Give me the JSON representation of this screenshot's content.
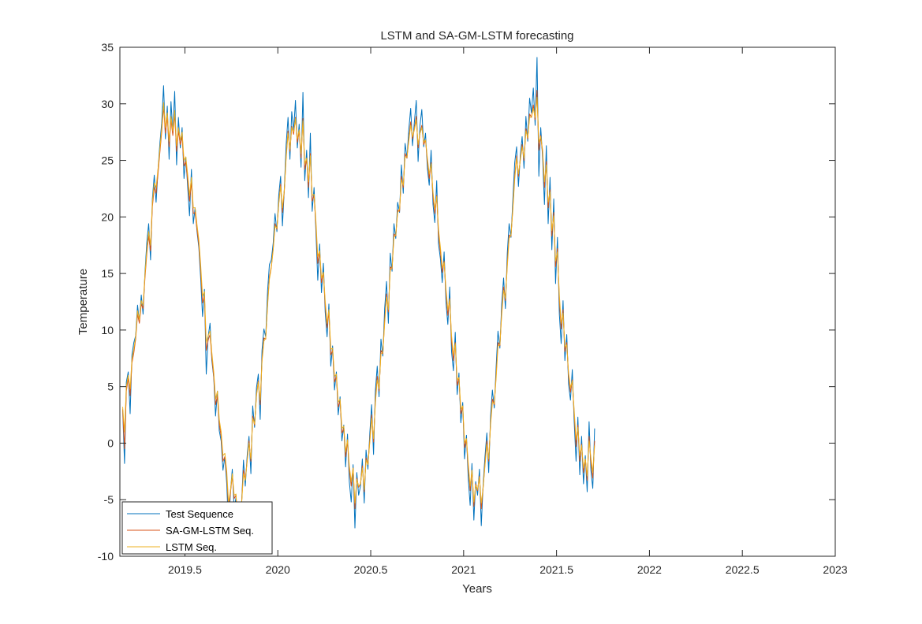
{
  "chart_data": {
    "type": "line",
    "title": "LSTM and SA-GM-LSTM forecasting",
    "xlabel": "Years",
    "ylabel": "Temperature",
    "xlim": [
      2019.15,
      2023.0
    ],
    "ylim": [
      -10,
      35
    ],
    "xticks": [
      2019.5,
      2020,
      2020.5,
      2021,
      2021.5,
      2022,
      2022.5,
      2023
    ],
    "xtick_labels": [
      "2019.5",
      "2020",
      "2020.5",
      "2021",
      "2021.5",
      "2022",
      "2022.5",
      "2023"
    ],
    "yticks": [
      -10,
      -5,
      0,
      5,
      10,
      15,
      20,
      25,
      30,
      35
    ],
    "ytick_labels": [
      "-10",
      "-5",
      "0",
      "5",
      "10",
      "15",
      "20",
      "25",
      "30",
      "35"
    ],
    "grid": false,
    "legend_position": "bottom-left",
    "x_start": 2019.165,
    "x_step": 0.01,
    "series": [
      {
        "name": "Test Sequence",
        "color": "#0072BD",
        "values": [
          3.0,
          -1.8,
          5.4,
          6.3,
          2.6,
          7.8,
          8.9,
          9.5,
          12.2,
          10.7,
          13.1,
          11.4,
          15.1,
          17.8,
          19.4,
          16.2,
          21.6,
          23.7,
          21.3,
          24.1,
          26.5,
          28.3,
          31.6,
          26.9,
          29.8,
          25.1,
          30.2,
          27.4,
          31.1,
          24.6,
          28.8,
          26.1,
          27.9,
          23.4,
          25.3,
          22.6,
          20.1,
          24.2,
          19.4,
          20.8,
          18.7,
          17.3,
          14.5,
          11.2,
          13.6,
          6.1,
          9.4,
          10.6,
          7.3,
          5.8,
          2.4,
          4.6,
          1.1,
          0.2,
          -2.4,
          -1.2,
          -3.6,
          -7.6,
          -4.3,
          -2.3,
          -5.9,
          -4.8,
          -9.6,
          -8.7,
          -5.4,
          -1.5,
          -3.8,
          -1.1,
          0.6,
          -2.7,
          3.3,
          1.4,
          4.9,
          6.1,
          2.1,
          8.2,
          10.1,
          9.4,
          13.5,
          15.8,
          16.2,
          17.7,
          20.3,
          18.7,
          21.9,
          23.6,
          19.2,
          22.5,
          26.4,
          28.8,
          25.1,
          29.3,
          27.6,
          30.3,
          26.1,
          28.2,
          24.4,
          31.0,
          23.2,
          25.9,
          21.7,
          27.4,
          20.5,
          22.6,
          18.8,
          14.4,
          17.6,
          13.3,
          15.9,
          11.6,
          9.4,
          12.3,
          6.8,
          8.6,
          4.7,
          6.3,
          2.5,
          4.1,
          0.2,
          1.6,
          -2.1,
          0.8,
          -3.4,
          -5.2,
          -1.9,
          -7.5,
          -2.6,
          -4.6,
          -3.8,
          -1.4,
          -5.3,
          -0.6,
          -2.3,
          0.9,
          3.4,
          -1.0,
          4.6,
          6.8,
          4.1,
          9.2,
          7.7,
          11.9,
          14.3,
          10.6,
          16.8,
          15.2,
          19.4,
          18.1,
          21.3,
          20.4,
          24.6,
          22.1,
          26.5,
          25.2,
          27.7,
          29.6,
          26.3,
          28.4,
          30.3,
          24.9,
          28.1,
          29.5,
          26.2,
          27.4,
          24.3,
          22.8,
          25.9,
          21.1,
          19.5,
          23.2,
          17.6,
          16.3,
          14.2,
          16.9,
          12.4,
          10.5,
          13.8,
          8.1,
          6.4,
          9.8,
          4.3,
          6.2,
          1.8,
          3.6,
          -1.4,
          0.7,
          -3.1,
          -5.5,
          -1.8,
          -6.8,
          -3.4,
          -4.6,
          -2.3,
          -7.3,
          -3.6,
          -1.2,
          0.9,
          -2.6,
          2.4,
          4.7,
          3.1,
          6.8,
          9.9,
          8.4,
          12.3,
          14.6,
          11.9,
          16.8,
          19.4,
          18.2,
          21.6,
          24.8,
          26.2,
          22.7,
          25.4,
          27.1,
          24.3,
          28.9,
          26.7,
          30.5,
          29.2,
          31.4,
          28.1,
          34.1,
          23.6,
          27.9,
          25.2,
          21.1,
          26.3,
          19.4,
          23.5,
          17.1,
          21.6,
          14.1,
          18.2,
          11.4,
          8.8,
          12.6,
          7.3,
          9.6,
          5.2,
          3.8,
          6.5,
          1.9,
          -1.6,
          2.3,
          -2.8,
          0.6,
          -3.6,
          -1.1,
          -4.3,
          1.9,
          -2.4,
          -4.0,
          1.3
        ]
      },
      {
        "name": "SA-GM-LSTM Seq.",
        "color": "#D95319",
        "values": [
          3.0,
          -0.5,
          4.6,
          5.8,
          4.2,
          7.1,
          8.0,
          9.2,
          11.4,
          10.6,
          12.3,
          11.9,
          14.6,
          16.8,
          18.3,
          17.0,
          20.9,
          22.6,
          22.1,
          23.8,
          25.7,
          27.5,
          29.8,
          27.4,
          28.9,
          26.2,
          28.6,
          27.2,
          29.1,
          25.8,
          27.6,
          26.4,
          27.1,
          24.5,
          24.9,
          23.2,
          21.4,
          23.1,
          20.3,
          20.4,
          18.9,
          17.6,
          15.2,
          12.4,
          13.0,
          8.2,
          9.1,
          9.6,
          7.6,
          5.9,
          3.4,
          4.2,
          1.7,
          0.6,
          -1.6,
          -1.2,
          -2.9,
          -5.8,
          -4.4,
          -2.8,
          -4.9,
          -4.6,
          -7.6,
          -7.5,
          -5.3,
          -2.4,
          -3.2,
          -1.5,
          0.2,
          -1.6,
          2.4,
          1.6,
          4.3,
          5.5,
          3.4,
          7.4,
          9.3,
          9.2,
          12.4,
          14.7,
          15.6,
          17.2,
          19.4,
          18.9,
          21.2,
          22.9,
          20.4,
          22.3,
          25.4,
          27.6,
          25.8,
          28.0,
          27.3,
          28.8,
          26.6,
          27.6,
          25.2,
          28.7,
          24.2,
          25.1,
          22.6,
          25.6,
          21.4,
          21.9,
          19.3,
          15.9,
          16.9,
          14.2,
          15.1,
          12.2,
          10.2,
          11.6,
          7.8,
          8.2,
          5.4,
          5.9,
          3.2,
          3.7,
          0.9,
          1.3,
          -1.2,
          0.2,
          -2.4,
          -3.8,
          -2.2,
          -5.8,
          -3.1,
          -3.9,
          -3.6,
          -2.0,
          -4.3,
          -1.3,
          -1.9,
          0.3,
          2.5,
          0.1,
          3.8,
          5.9,
          4.6,
          8.2,
          7.9,
          10.9,
          13.2,
          11.6,
          15.6,
          15.4,
          18.5,
          18.3,
          20.6,
          20.5,
          23.6,
          22.6,
          25.6,
          25.2,
          26.9,
          28.4,
          26.9,
          27.8,
          28.9,
          26.1,
          27.4,
          28.1,
          26.4,
          26.8,
          24.9,
          23.4,
          24.8,
          21.8,
          20.3,
          21.9,
          18.4,
          16.9,
          15.1,
          16.1,
          13.2,
          11.3,
          12.8,
          9.0,
          7.3,
          8.9,
          5.1,
          5.8,
          2.6,
          3.2,
          -0.4,
          0.3,
          -2.2,
          -4.2,
          -2.4,
          -5.6,
          -3.6,
          -4.2,
          -2.9,
          -5.8,
          -3.9,
          -1.8,
          0.2,
          -1.6,
          1.8,
          3.9,
          3.4,
          6.1,
          8.9,
          8.6,
          11.6,
          13.8,
          12.6,
          15.9,
          18.4,
          18.3,
          20.9,
          23.6,
          25.4,
          23.6,
          25.1,
          26.4,
          25.0,
          27.8,
          26.9,
          29.1,
          28.8,
          29.9,
          28.6,
          31.2,
          25.9,
          27.2,
          25.6,
          22.6,
          24.9,
          20.8,
          22.4,
          18.3,
          20.4,
          15.6,
          17.2,
          12.6,
          10.1,
          11.8,
          8.1,
          8.9,
          5.9,
          4.5,
          5.6,
          2.6,
          -0.3,
          1.6,
          -1.6,
          -0.1,
          -2.6,
          -1.4,
          -3.3,
          0.6,
          -1.7,
          -3.1,
          0.2
        ]
      },
      {
        "name": "LSTM Seq.",
        "color": "#EDB120",
        "values": [
          3.2,
          1.0,
          5.0,
          6.0,
          4.8,
          7.4,
          8.3,
          9.4,
          11.7,
          10.9,
          12.6,
          12.2,
          14.9,
          17.1,
          18.7,
          17.5,
          21.3,
          23.0,
          22.6,
          24.2,
          26.0,
          27.8,
          30.1,
          27.9,
          29.2,
          26.7,
          28.9,
          27.6,
          29.4,
          26.3,
          27.9,
          26.8,
          27.5,
          25.0,
          25.3,
          23.7,
          21.9,
          23.5,
          20.8,
          20.8,
          19.3,
          18.0,
          15.7,
          13.0,
          13.4,
          8.9,
          9.5,
          9.9,
          8.0,
          6.3,
          3.9,
          4.6,
          2.1,
          1.0,
          -1.1,
          -0.9,
          -2.5,
          -5.3,
          -4.2,
          -2.7,
          -4.6,
          -4.5,
          -7.1,
          -7.2,
          -5.4,
          -2.7,
          -3.3,
          -1.6,
          0.0,
          -1.4,
          2.2,
          1.7,
          4.2,
          5.4,
          3.8,
          7.2,
          9.0,
          9.3,
          12.2,
          14.5,
          15.5,
          17.1,
          19.2,
          19.0,
          21.1,
          22.7,
          20.8,
          22.4,
          25.2,
          27.4,
          26.0,
          27.9,
          27.5,
          28.7,
          26.9,
          27.7,
          25.6,
          28.5,
          24.7,
          25.2,
          23.1,
          25.4,
          21.9,
          22.0,
          19.7,
          16.5,
          17.0,
          14.6,
          15.1,
          12.6,
          10.6,
          11.8,
          8.3,
          8.4,
          5.9,
          6.1,
          3.6,
          3.9,
          1.3,
          1.5,
          -0.8,
          0.3,
          -2.0,
          -3.4,
          -2.2,
          -5.3,
          -3.2,
          -3.8,
          -3.6,
          -2.2,
          -4.1,
          -1.5,
          -1.9,
          0.1,
          2.2,
          0.4,
          3.5,
          5.6,
          4.8,
          7.9,
          8.0,
          10.6,
          12.9,
          11.8,
          15.3,
          15.5,
          18.2,
          18.4,
          20.4,
          20.7,
          23.3,
          22.8,
          25.3,
          25.3,
          26.7,
          28.1,
          27.1,
          27.7,
          28.6,
          26.4,
          27.4,
          27.9,
          26.6,
          26.8,
          25.2,
          23.8,
          24.7,
          22.2,
          20.7,
          21.8,
          18.9,
          17.3,
          15.5,
          16.0,
          13.6,
          11.8,
          12.7,
          9.5,
          7.8,
          8.8,
          5.6,
          5.8,
          3.0,
          3.3,
          0.0,
          0.4,
          -1.8,
          -3.8,
          -2.4,
          -5.2,
          -3.7,
          -4.1,
          -3.0,
          -5.3,
          -3.9,
          -2.0,
          -0.1,
          -1.4,
          1.6,
          3.6,
          3.5,
          5.8,
          8.6,
          8.7,
          11.3,
          13.5,
          12.8,
          15.6,
          18.1,
          18.4,
          20.7,
          23.3,
          25.2,
          23.8,
          25.0,
          26.2,
          25.2,
          27.6,
          27.0,
          28.8,
          28.8,
          29.6,
          28.8,
          30.6,
          26.6,
          27.1,
          25.9,
          23.1,
          24.6,
          21.3,
          22.2,
          18.8,
          20.1,
          16.1,
          16.9,
          13.1,
          10.6,
          11.5,
          8.5,
          8.7,
          6.2,
          4.9,
          5.5,
          2.9,
          0.3,
          1.4,
          -1.1,
          -0.2,
          -2.2,
          -1.4,
          -2.9,
          0.2,
          -1.3,
          -2.6,
          -0.2
        ]
      }
    ]
  }
}
